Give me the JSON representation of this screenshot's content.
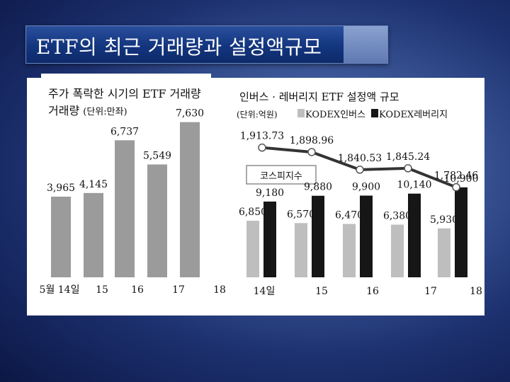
{
  "slide": {
    "title": "ETF의 최근 거래량과 설정액규모"
  },
  "colors": {
    "bar_gray": "#9b9b9b",
    "bar_light": "#bebebe",
    "bar_black": "#161616",
    "line": "#333333"
  },
  "chart_data": [
    {
      "type": "bar",
      "title": "주가 폭락한 시기의 ETF 거래량",
      "unit": "(단위:만좌)",
      "categories": [
        "5월 14일",
        "15",
        "16",
        "17",
        "18"
      ],
      "values": [
        3965,
        4145,
        6737,
        5549,
        7630
      ],
      "value_labels": [
        "3,965",
        "4,145",
        "6,737",
        "5,549",
        "7,630"
      ],
      "ylim": [
        0,
        8000
      ]
    },
    {
      "type": "bar+line",
      "title": "인버스 · 레버리지 ETF 설정액 규모",
      "unit": "(단위:억원)",
      "categories": [
        "14일",
        "15",
        "16",
        "17",
        "18"
      ],
      "series": [
        {
          "name": "KODEX인버스",
          "values": [
            6850,
            6570,
            6470,
            6380,
            5930
          ],
          "labels": [
            "6,850",
            "6,570",
            "6,470",
            "6,380",
            "5,930"
          ]
        },
        {
          "name": "KODEX레버리지",
          "values": [
            9180,
            9880,
            9900,
            10140,
            10900
          ],
          "labels": [
            "9,180",
            "9,880",
            "9,900",
            "10,140",
            "10,900"
          ]
        }
      ],
      "line": {
        "name": "코스피지수",
        "values": [
          1913.73,
          1898.96,
          1840.53,
          1845.24,
          1782.46
        ],
        "labels": [
          "1,913.73",
          "1,898.96",
          "1,840.53",
          "1,845.24",
          "1,782.46"
        ]
      },
      "bar_ylim": [
        0,
        12000
      ],
      "line_ylim": [
        1770,
        1920
      ]
    }
  ]
}
